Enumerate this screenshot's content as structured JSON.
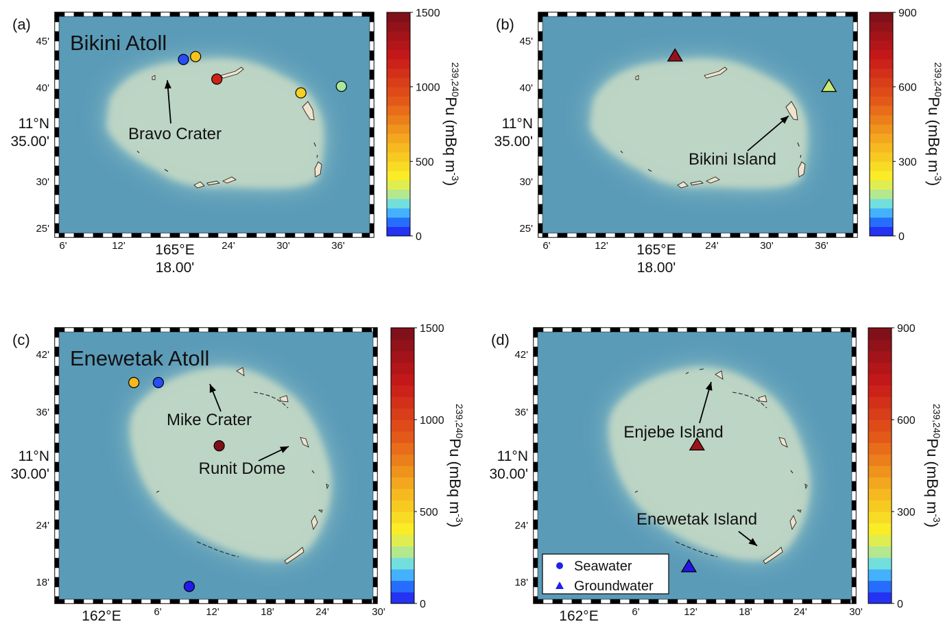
{
  "colors": {
    "ocean": "#5a9bb8",
    "shelf": "#9cc8c6",
    "lagoon": "#bfd6c4",
    "land": "#efe3cc",
    "title_text": "#ffffff"
  },
  "panels": [
    {
      "id": "a",
      "label": "(a)",
      "atoll_title": "Bikini Atoll",
      "lat_ticks": [
        "45'",
        "40'",
        "11°N 35.00'",
        "30'",
        "25'"
      ],
      "lon_ticks": [
        "6'",
        "12'",
        "165°E 18.00'",
        "24'",
        "30'",
        "36'"
      ],
      "annotations": [
        "Bravo Crater"
      ],
      "markers": [
        {
          "type": "Seawater",
          "pu": 60,
          "lat_min": 41.5,
          "lon_min": 16.2
        },
        {
          "type": "Seawater",
          "pu": 560,
          "lat_min": 41.9,
          "lon_min": 17.4
        },
        {
          "type": "Seawater",
          "pu": 1150,
          "lat_min": 38.8,
          "lon_min": 19.5
        },
        {
          "type": "Seawater",
          "pu": 510,
          "lat_min": 36.9,
          "lon_min": 27.8
        },
        {
          "type": "Seawater",
          "pu": 270,
          "lat_min": 37.8,
          "lon_min": 31.8
        }
      ],
      "colorbar": {
        "max": 1500,
        "ticks": [
          1500,
          1000,
          500,
          0
        ],
        "label": "239,240Pu (mBq m-3)"
      }
    },
    {
      "id": "b",
      "label": "(b)",
      "atoll_title": "",
      "lat_ticks": [
        "45'",
        "40'",
        "11°N 35.00'",
        "30'",
        "25'"
      ],
      "lon_ticks": [
        "6'",
        "12'",
        "165°E 18.00'",
        "24'",
        "30'",
        "36'"
      ],
      "annotations": [
        "Bikini Island"
      ],
      "markers": [
        {
          "type": "Groundwater",
          "pu": 830,
          "lat_min": 42.0,
          "lon_min": 17.0
        },
        {
          "type": "Groundwater",
          "pu": 180,
          "lat_min": 37.8,
          "lon_min": 32.2
        }
      ],
      "colorbar": {
        "max": 900,
        "ticks": [
          900,
          600,
          300,
          0
        ],
        "label": "239,240Pu (mBq m-3)"
      }
    },
    {
      "id": "c",
      "label": "(c)",
      "atoll_title": "Enewetak Atoll",
      "lat_ticks": [
        "42'",
        "36'",
        "11°N 30.00'",
        "24'",
        "18'"
      ],
      "lon_ticks": [
        "162°E",
        "6'",
        "12'",
        "18'",
        "24'",
        "30'"
      ],
      "annotations": [
        "Mike Crater",
        "Runit Dome"
      ],
      "markers": [
        {
          "type": "Seawater",
          "pu": 600,
          "lat_min": 39.8,
          "lon_min": 11.5
        },
        {
          "type": "Seawater",
          "pu": 60,
          "lat_min": 39.8,
          "lon_min": 14.2
        },
        {
          "type": "Seawater",
          "pu": 1480,
          "lat_min": 33.1,
          "lon_min": 20.9
        },
        {
          "type": "Seawater",
          "pu": 5,
          "lat_min": 18.2,
          "lon_min": 17.6
        }
      ],
      "colorbar": {
        "max": 1500,
        "ticks": [
          1500,
          1000,
          500,
          0
        ],
        "label": "239,240Pu (mBq m-3)"
      }
    },
    {
      "id": "d",
      "label": "(d)",
      "atoll_title": "",
      "lat_ticks": [
        "42'",
        "36'",
        "11°N 30.00'",
        "24'",
        "18'"
      ],
      "lon_ticks": [
        "162°E",
        "6'",
        "12'",
        "18'",
        "24'",
        "30'"
      ],
      "annotations": [
        "Enjebe Island",
        "Enewetak Island"
      ],
      "markers": [
        {
          "type": "Groundwater",
          "pu": 820,
          "lat_min": 33.2,
          "lon_min": 20.8
        },
        {
          "type": "Groundwater",
          "pu": 0,
          "lat_min": 20.3,
          "lon_min": 19.9
        }
      ],
      "colorbar": {
        "max": 900,
        "ticks": [
          900,
          600,
          300,
          0
        ],
        "label": "239,240Pu (mBq m-3)"
      }
    }
  ],
  "legend": {
    "items": [
      {
        "symbol": "circle",
        "label": "Seawater"
      },
      {
        "symbol": "triangle",
        "label": "Groundwater"
      }
    ]
  }
}
